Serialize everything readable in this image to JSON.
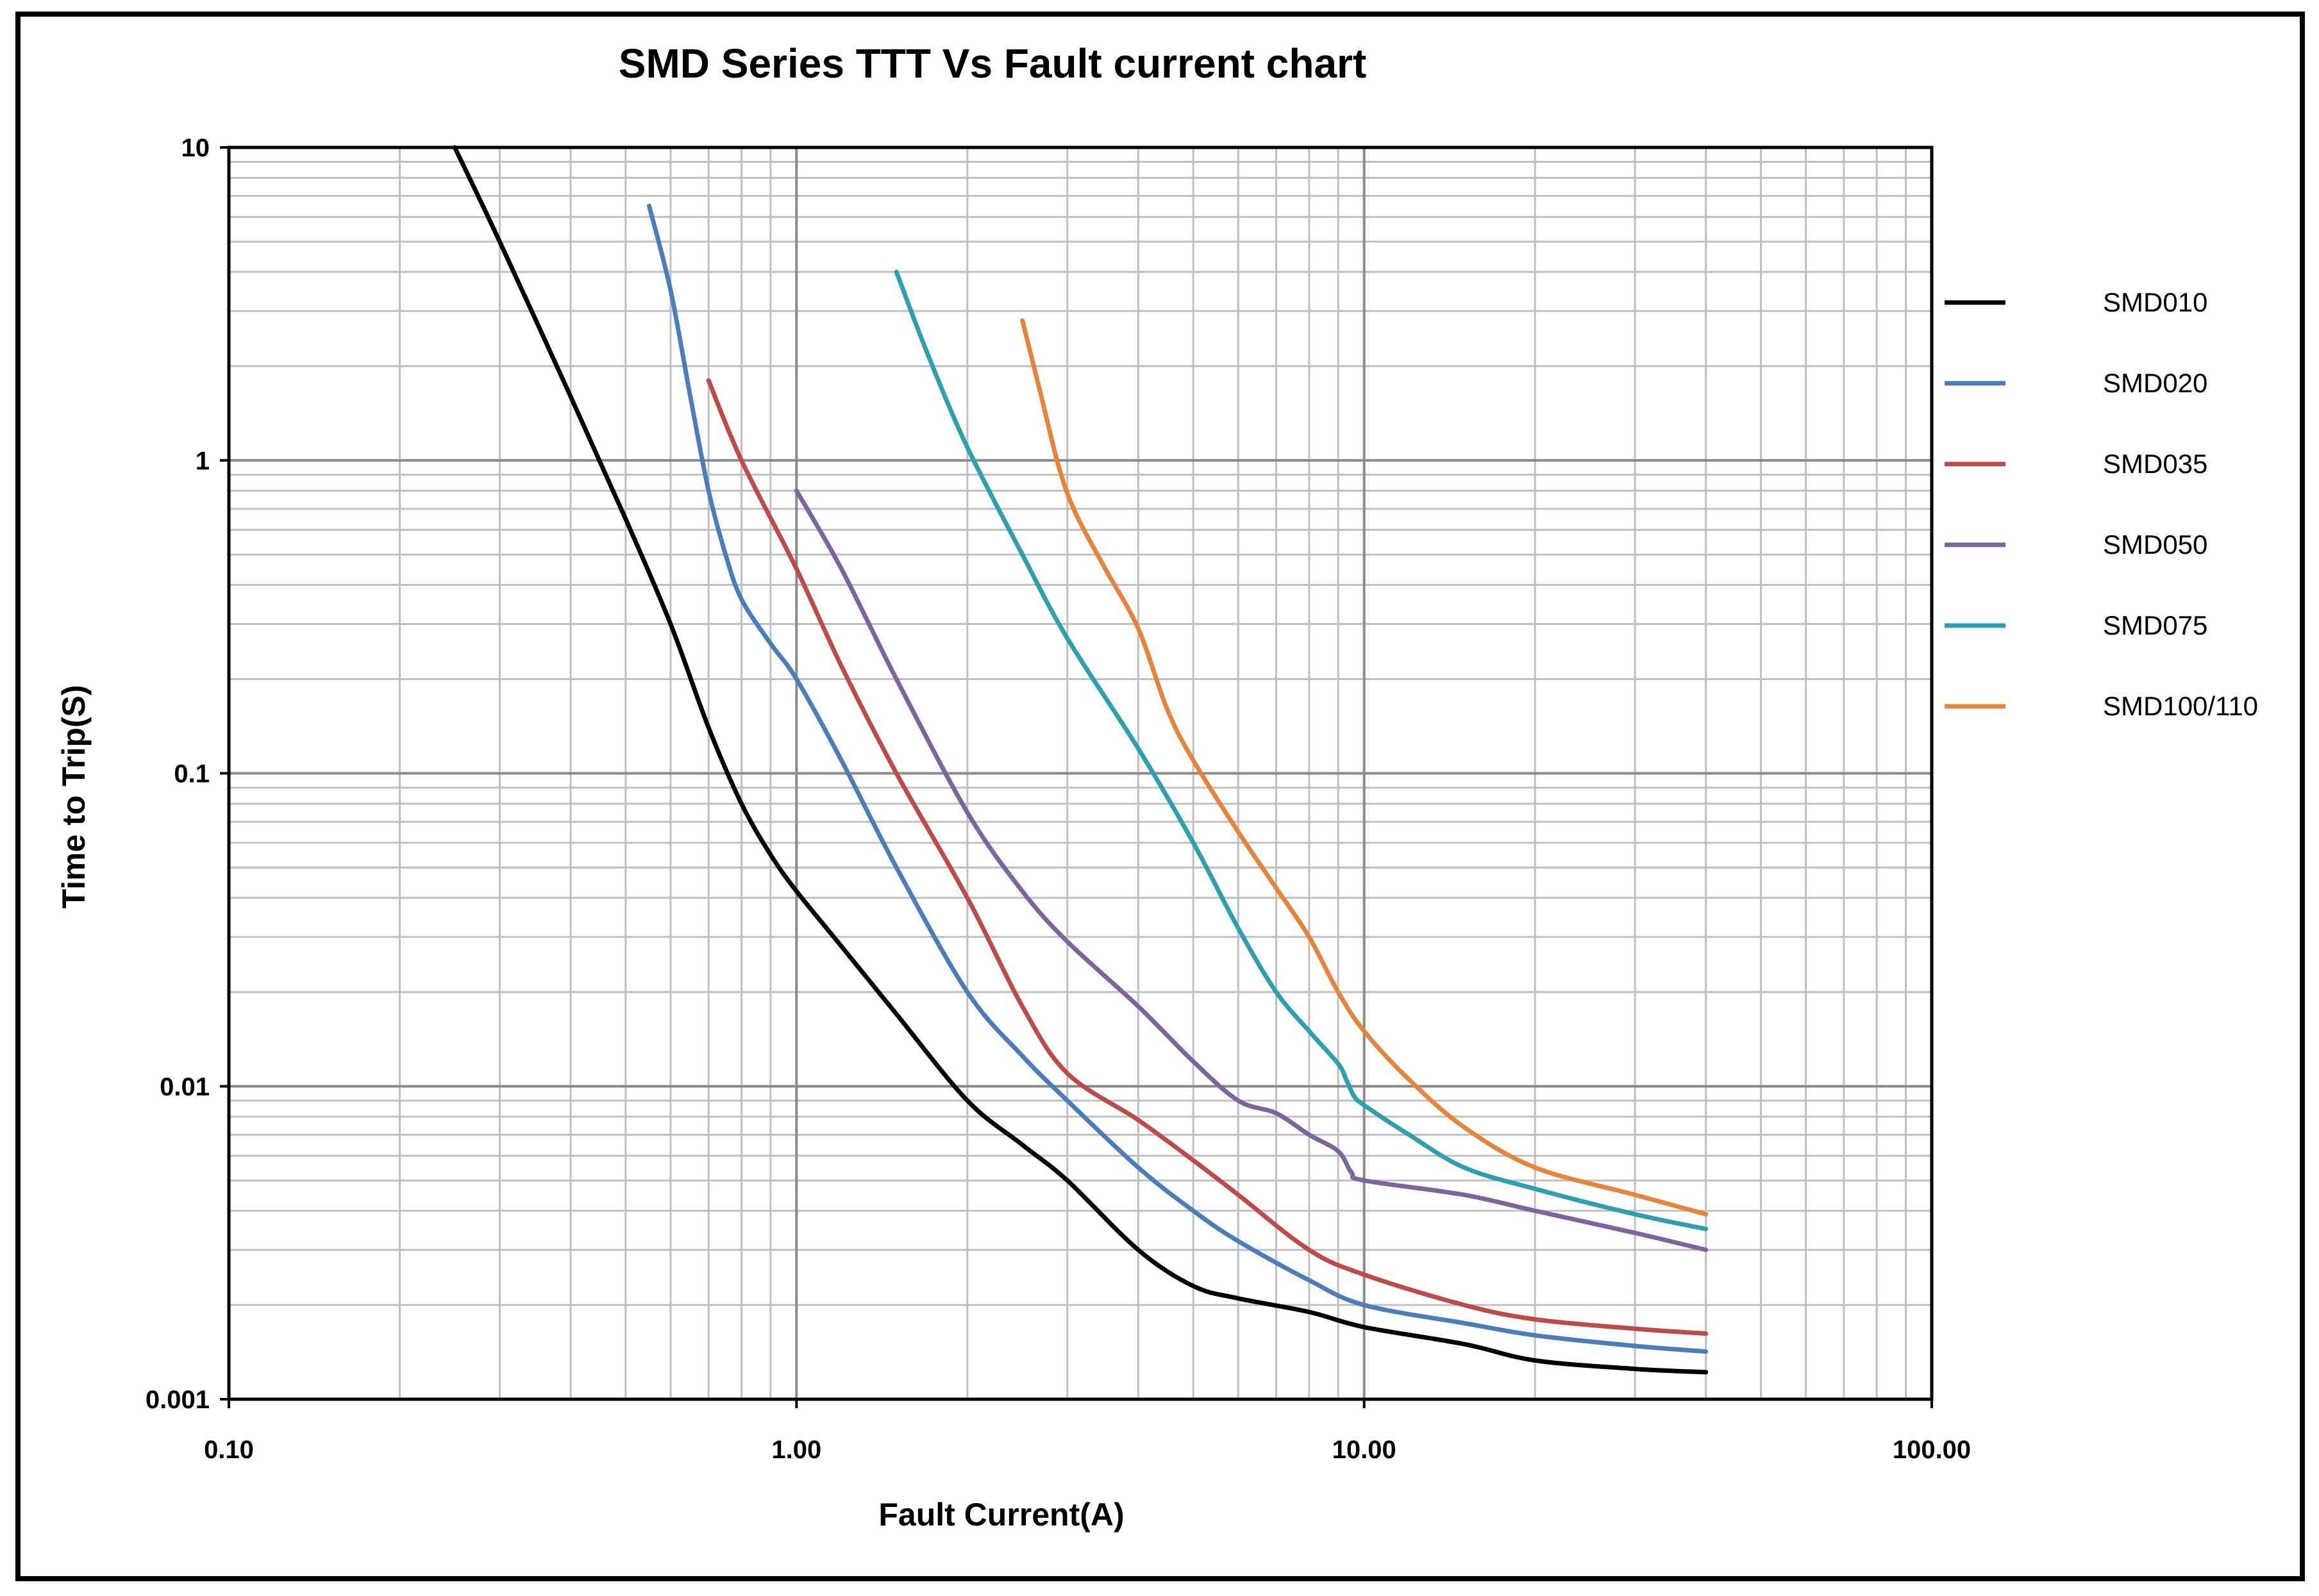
{
  "chart_data": {
    "type": "line",
    "title": "SMD Series TTT Vs Fault current chart",
    "xlabel": "Fault Current(A)",
    "ylabel": "Time to Trip(S)",
    "x_scale": "log",
    "y_scale": "log",
    "xlim": [
      0.1,
      100
    ],
    "ylim": [
      0.001,
      10
    ],
    "x_ticks": [
      0.1,
      1,
      10,
      100
    ],
    "x_tick_labels": [
      "0.10",
      "1.00",
      "10.00",
      "100.00"
    ],
    "y_ticks": [
      10,
      1,
      0.1,
      0.01,
      0.001
    ],
    "y_tick_labels": [
      "10",
      "1",
      "0.1",
      "0.01",
      "0.001"
    ],
    "grid": true,
    "legend_position": "right",
    "series": [
      {
        "name": "SMD010",
        "color": "#000000",
        "x": [
          0.25,
          0.3,
          0.4,
          0.5,
          0.6,
          0.7,
          0.8,
          0.9,
          1.0,
          1.2,
          1.5,
          2.0,
          2.5,
          3.0,
          4.0,
          5.0,
          6.0,
          8.0,
          10.0,
          15.0,
          20.0,
          30.0,
          40.0
        ],
        "y": [
          10,
          5,
          1.6,
          0.65,
          0.3,
          0.14,
          0.08,
          0.055,
          0.042,
          0.028,
          0.017,
          0.009,
          0.0065,
          0.005,
          0.003,
          0.0023,
          0.0021,
          0.0019,
          0.0017,
          0.0015,
          0.00133,
          0.00125,
          0.00122
        ]
      },
      {
        "name": "SMD020",
        "color": "#4a7ebb",
        "x": [
          0.55,
          0.6,
          0.65,
          0.7,
          0.75,
          0.8,
          0.9,
          1.0,
          1.2,
          1.5,
          2.0,
          2.5,
          3.0,
          4.0,
          5.0,
          6.0,
          8.0,
          10.0,
          15.0,
          20.0,
          30.0,
          40.0
        ],
        "y": [
          6.5,
          3.5,
          1.6,
          0.8,
          0.5,
          0.36,
          0.26,
          0.2,
          0.11,
          0.05,
          0.02,
          0.0125,
          0.009,
          0.0055,
          0.004,
          0.0032,
          0.0024,
          0.002,
          0.00175,
          0.0016,
          0.00148,
          0.00142
        ]
      },
      {
        "name": "SMD035",
        "color": "#be4b48",
        "x": [
          0.7,
          0.8,
          1.0,
          1.2,
          1.5,
          2.0,
          2.5,
          3.0,
          4.0,
          5.0,
          6.0,
          8.0,
          10.0,
          15.0,
          20.0,
          30.0,
          40.0
        ],
        "y": [
          1.8,
          1.0,
          0.45,
          0.22,
          0.1,
          0.04,
          0.018,
          0.011,
          0.0078,
          0.0058,
          0.0045,
          0.003,
          0.0025,
          0.002,
          0.0018,
          0.00168,
          0.00162
        ]
      },
      {
        "name": "SMD050",
        "color": "#7e649e",
        "x": [
          1.0,
          1.2,
          1.5,
          2.0,
          2.5,
          3.0,
          4.0,
          5.0,
          6.0,
          7.0,
          8.0,
          9.0,
          9.5,
          10.0,
          15.0,
          20.0,
          30.0,
          40.0
        ],
        "y": [
          0.8,
          0.45,
          0.2,
          0.075,
          0.042,
          0.029,
          0.018,
          0.012,
          0.009,
          0.0082,
          0.007,
          0.0062,
          0.0053,
          0.005,
          0.0045,
          0.004,
          0.0034,
          0.003
        ]
      },
      {
        "name": "SMD075",
        "color": "#2c9fb0",
        "x": [
          1.5,
          1.7,
          2.0,
          2.5,
          3.0,
          4.0,
          5.0,
          6.0,
          7.0,
          8.0,
          9.0,
          9.3,
          9.6,
          10.0,
          12.0,
          15.0,
          20.0,
          30.0,
          40.0
        ],
        "y": [
          4.0,
          2.2,
          1.1,
          0.5,
          0.27,
          0.12,
          0.06,
          0.032,
          0.02,
          0.015,
          0.0118,
          0.0105,
          0.0093,
          0.0087,
          0.007,
          0.0055,
          0.0047,
          0.0039,
          0.0035
        ]
      },
      {
        "name": "SMD100/110",
        "color": "#e8833a",
        "x": [
          2.5,
          2.7,
          2.9,
          3.1,
          3.5,
          4.0,
          4.5,
          5.0,
          6.0,
          7.0,
          8.0,
          9.0,
          10.0,
          12.0,
          15.0,
          20.0,
          30.0,
          40.0
        ],
        "y": [
          2.8,
          1.6,
          0.95,
          0.68,
          0.45,
          0.29,
          0.16,
          0.11,
          0.065,
          0.043,
          0.03,
          0.02,
          0.015,
          0.0105,
          0.0074,
          0.0055,
          0.0045,
          0.0039
        ]
      }
    ]
  }
}
